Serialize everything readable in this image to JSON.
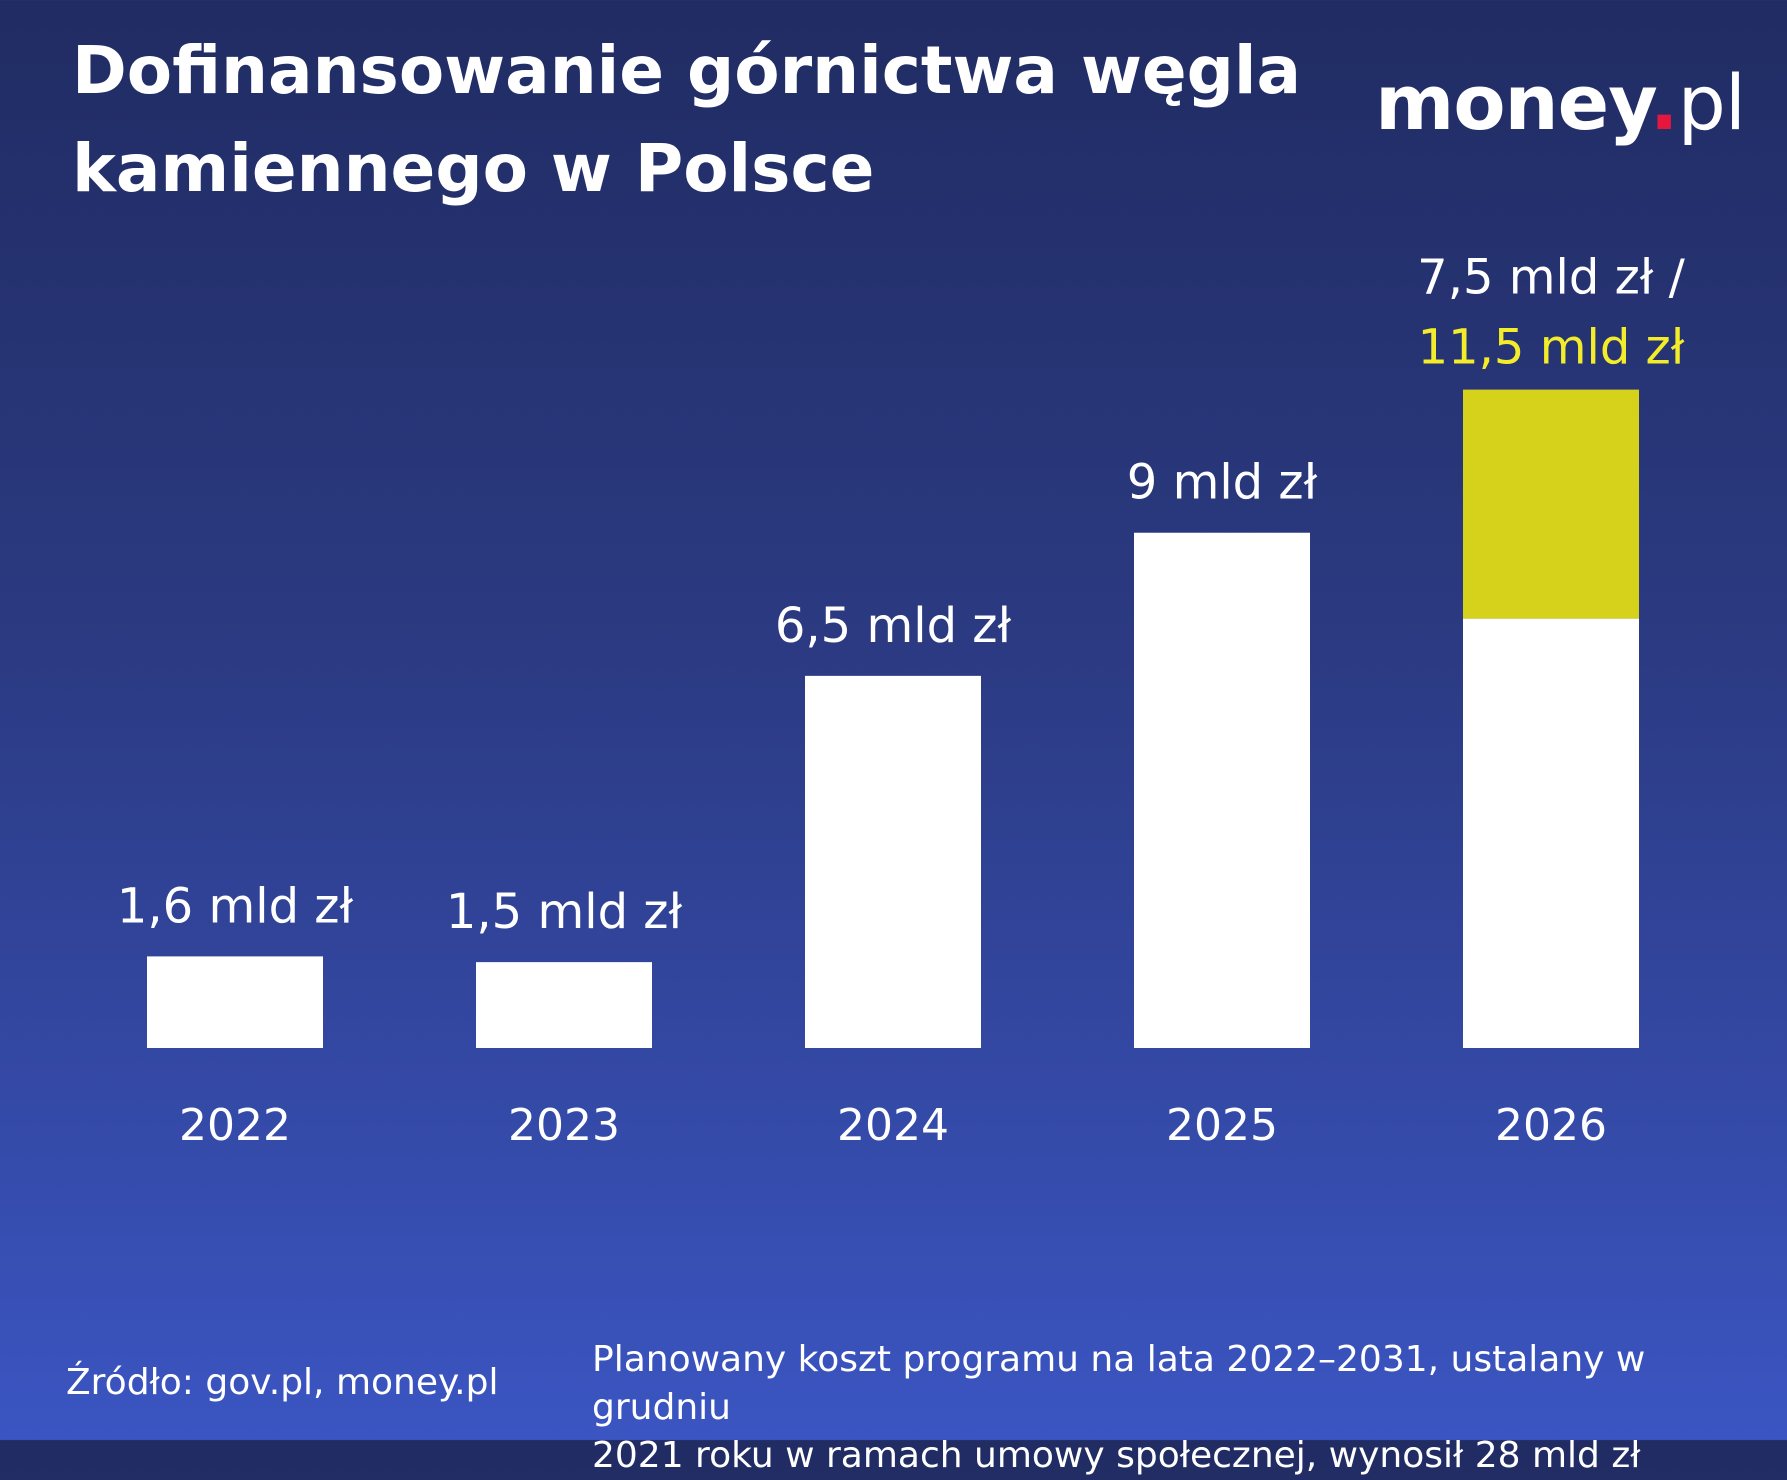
{
  "header": {
    "title_line1": "Dofinansowanie górnictwa węgla",
    "title_line2": "kamiennego w Polsce"
  },
  "logo": {
    "brand": "money",
    "dot": ".",
    "tld": "pl"
  },
  "colors": {
    "bar_primary": "#ffffff",
    "bar_highlight": "#d6d11b",
    "label_highlight": "#f3ec2a",
    "logo_dot": "#e5173f"
  },
  "chart_data": {
    "type": "bar",
    "title": "Dofinansowanie górnictwa węgla kamiennego w Polsce",
    "xlabel": "",
    "ylabel": "",
    "unit": "mld zł",
    "ylim": [
      0,
      13.1
    ],
    "grid": false,
    "categories": [
      "2022",
      "2023",
      "2024",
      "2025",
      "2026"
    ],
    "values": [
      1.6,
      1.5,
      6.5,
      9,
      7.5
    ],
    "extended_values": [
      null,
      null,
      null,
      null,
      11.5
    ],
    "data_labels": [
      "1,6 mld zł",
      "1,5 mld zł",
      "6,5 mld zł",
      "9 mld zł",
      "7,5 mld zł /"
    ],
    "extended_data_labels": [
      null,
      null,
      null,
      null,
      "11,5 mld zł"
    ]
  },
  "footer": {
    "source": "Źródło: gov.pl, money.pl",
    "note_line1": "Planowany koszt programu na lata 2022–2031, ustalany w grudniu",
    "note_line2": "2021 roku w ramach umowy społecznej, wynosił 28 mld zł"
  }
}
